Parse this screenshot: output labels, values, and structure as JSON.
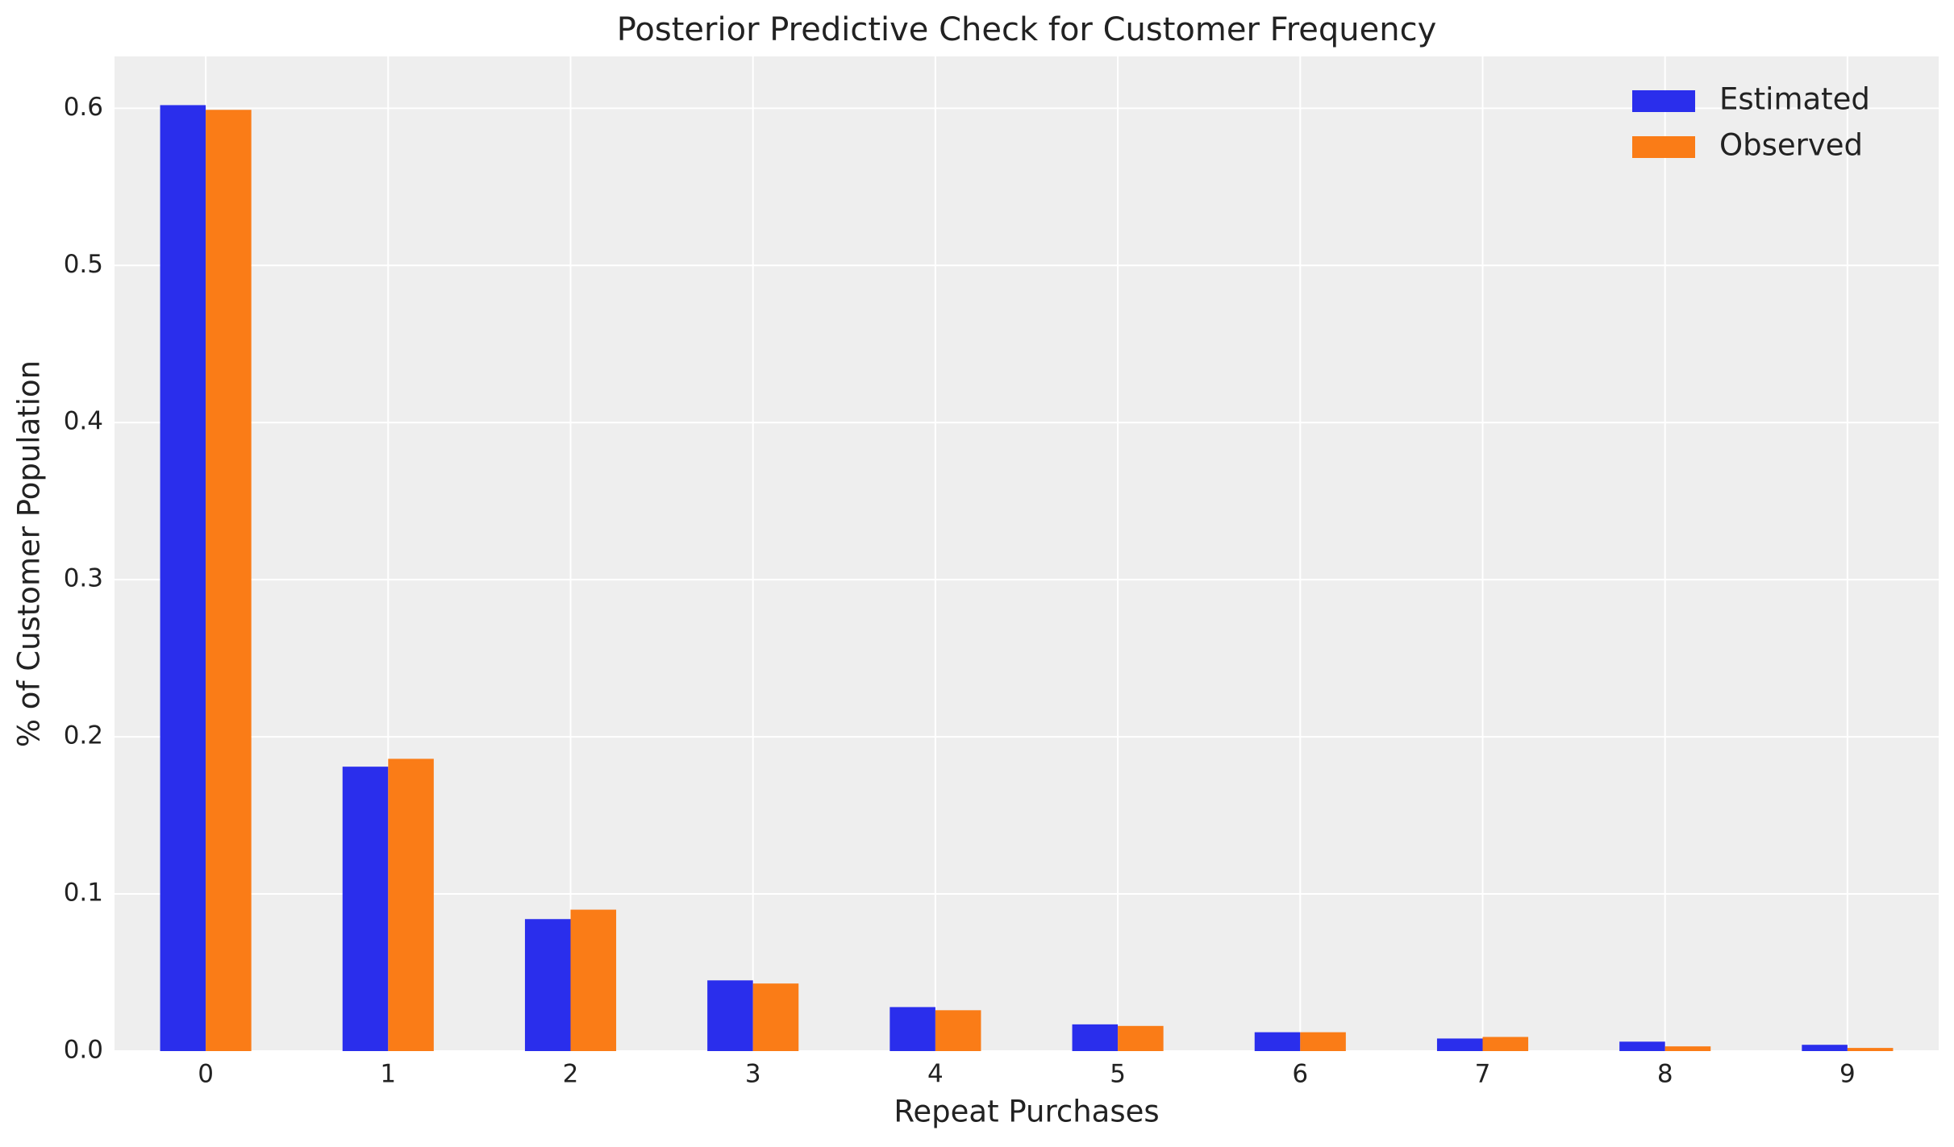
{
  "chart_data": {
    "type": "bar",
    "title": "Posterior Predictive Check for Customer Frequency",
    "x_label": "Repeat Purchases",
    "y_label": "% of Customer Population",
    "categories": [
      "0",
      "1",
      "2",
      "3",
      "4",
      "5",
      "6",
      "7",
      "8",
      "9"
    ],
    "series": [
      {
        "name": "Estimated",
        "color": "#2a2eec",
        "values": [
          0.602,
          0.181,
          0.084,
          0.045,
          0.028,
          0.017,
          0.012,
          0.008,
          0.006,
          0.004
        ]
      },
      {
        "name": "Observed",
        "color": "#fa7c17",
        "values": [
          0.599,
          0.186,
          0.09,
          0.043,
          0.026,
          0.016,
          0.012,
          0.009,
          0.003,
          0.002
        ]
      }
    ],
    "ylim": [
      0,
      0.633
    ],
    "yticks": [
      {
        "value": 0,
        "label": "0.0"
      },
      0.1,
      0.2,
      0.3,
      0.4,
      0.5,
      0.6
    ],
    "grid": true,
    "legend": "upper right"
  }
}
